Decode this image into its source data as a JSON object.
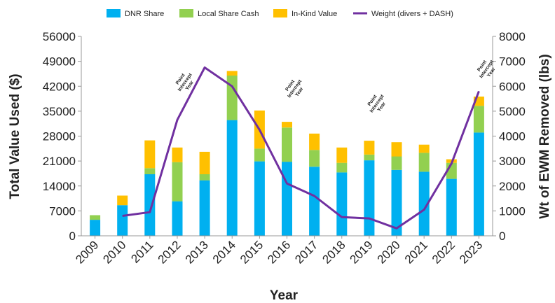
{
  "chart_data": {
    "type": "bar",
    "stacked": true,
    "categories": [
      "2009",
      "2010",
      "2011",
      "2012",
      "2013",
      "2014",
      "2015",
      "2016",
      "2017",
      "2018",
      "2019",
      "2020",
      "2021",
      "2022",
      "2023"
    ],
    "series": [
      {
        "name": "DNR Share",
        "color": "#00b0f0",
        "axis": "left",
        "values": [
          4500,
          8600,
          17300,
          9700,
          15600,
          32500,
          20900,
          20800,
          19400,
          17800,
          21200,
          18500,
          18000,
          16000,
          29000
        ]
      },
      {
        "name": "Local Share Cash",
        "color": "#92d050",
        "axis": "left",
        "values": [
          1300,
          0,
          1700,
          11000,
          1700,
          12500,
          3600,
          9600,
          4700,
          2700,
          1600,
          3800,
          5300,
          4500,
          7500
        ]
      },
      {
        "name": "In-Kind Value",
        "color": "#ffc000",
        "axis": "left",
        "values": [
          0,
          2700,
          7800,
          4100,
          6300,
          1300,
          10700,
          1600,
          4600,
          4300,
          3900,
          4000,
          2300,
          1000,
          2600
        ]
      },
      {
        "name": "Weight (divers + DASH)",
        "type": "line",
        "color": "#7030a0",
        "axis": "right",
        "values": [
          null,
          800,
          950,
          4650,
          6750,
          6000,
          4250,
          2100,
          1600,
          750,
          700,
          300,
          1050,
          2900,
          5800
        ]
      }
    ],
    "xlabel": "Year",
    "ylabel": "Total Value Used ($)",
    "ylabel_right": "Wt of EWM Removed (lbs)",
    "ylim": [
      0,
      56000
    ],
    "ylim_right": [
      0,
      8000
    ],
    "yticks": [
      "0",
      "7000",
      "14000",
      "21000",
      "28000",
      "35000",
      "42000",
      "49000",
      "56000"
    ],
    "yticks_right": [
      "0",
      "1000",
      "2000",
      "3000",
      "4000",
      "5000",
      "6000",
      "7000",
      "8000"
    ],
    "legend_position": "top",
    "annotations": [
      {
        "category": "2012",
        "lines": [
          "Point",
          "Intercept",
          "Year"
        ],
        "level": 43800
      },
      {
        "category": "2016",
        "lines": [
          "Point",
          "Intercept",
          "Year"
        ],
        "level": 42000
      },
      {
        "category": "2019",
        "lines": [
          "Point",
          "Intercept",
          "Year"
        ],
        "level": 37800
      },
      {
        "category": "2023",
        "lines": [
          "Point",
          "Intercept",
          "Year"
        ],
        "level": 47500
      }
    ],
    "grid": false
  }
}
